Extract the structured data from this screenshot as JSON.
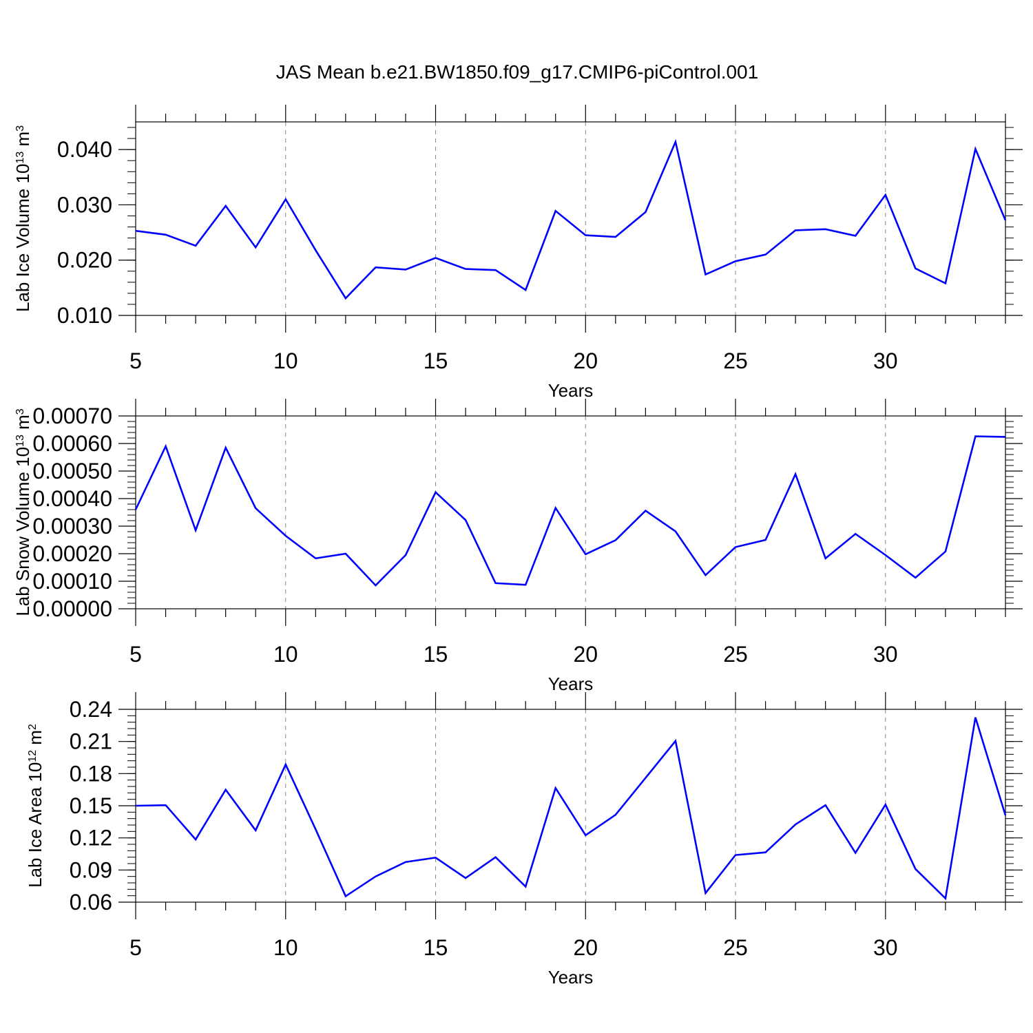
{
  "title": "JAS Mean b.e21.BW1850.f09_g17.CMIP6-piControl.001",
  "chart_data": [
    {
      "type": "line",
      "xlabel": "Years",
      "ylabel": "Lab Ice Volume 10",
      "ylabel_sup": "13",
      "ylabel_unit": " m",
      "ylabel_unit_sup": "3",
      "xlim": [
        5,
        34
      ],
      "ylim": [
        0.01,
        0.045
      ],
      "x_ticks": [
        5,
        10,
        15,
        20,
        25,
        30
      ],
      "x_tick_labels": [
        "5",
        "10",
        "15",
        "20",
        "25",
        "30"
      ],
      "y_ticks": [
        0.01,
        0.02,
        0.03,
        0.04
      ],
      "y_tick_labels": [
        "0.010",
        "0.020",
        "0.030",
        "0.040"
      ],
      "y_minor_step": 0.002,
      "grid_x": "dashed-major",
      "line_color": "#0000ff",
      "x": [
        5,
        6,
        7,
        8,
        9,
        10,
        11,
        12,
        13,
        14,
        15,
        16,
        17,
        18,
        19,
        20,
        21,
        22,
        23,
        24,
        25,
        26,
        27,
        28,
        29,
        30,
        31,
        32,
        33,
        34
      ],
      "y": [
        0.0253,
        0.0246,
        0.0226,
        0.0298,
        0.0223,
        0.031,
        0.0218,
        0.0131,
        0.0187,
        0.0183,
        0.0204,
        0.0184,
        0.0182,
        0.0146,
        0.0289,
        0.0245,
        0.0242,
        0.0287,
        0.0414,
        0.0174,
        0.0198,
        0.021,
        0.0254,
        0.0256,
        0.0244,
        0.0318,
        0.0185,
        0.0158,
        0.0401,
        0.0272
      ]
    },
    {
      "type": "line",
      "xlabel": "Years",
      "ylabel": "Lab Snow Volume 10",
      "ylabel_sup": "13",
      "ylabel_unit": " m",
      "ylabel_unit_sup": "3",
      "xlim": [
        5,
        34
      ],
      "ylim": [
        0.0,
        0.0007
      ],
      "x_ticks": [
        5,
        10,
        15,
        20,
        25,
        30
      ],
      "x_tick_labels": [
        "5",
        "10",
        "15",
        "20",
        "25",
        "30"
      ],
      "y_ticks": [
        0.0,
        0.0001,
        0.0002,
        0.0003,
        0.0004,
        0.0005,
        0.0006,
        0.0007
      ],
      "y_tick_labels": [
        "0.00000",
        "0.00010",
        "0.00020",
        "0.00030",
        "0.00040",
        "0.00050",
        "0.00060",
        "0.00070"
      ],
      "y_minor_step": 2e-05,
      "grid_x": "dashed-major",
      "line_color": "#0000ff",
      "x": [
        5,
        6,
        7,
        8,
        9,
        10,
        11,
        12,
        13,
        14,
        15,
        16,
        17,
        18,
        19,
        20,
        21,
        22,
        23,
        24,
        25,
        26,
        27,
        28,
        29,
        30,
        31,
        32,
        33,
        34
      ],
      "y": [
        0.00036,
        0.00059,
        0.000285,
        0.000585,
        0.000365,
        0.000265,
        0.000183,
        0.0002,
        8.5e-05,
        0.000195,
        0.000423,
        0.000322,
        9.3e-05,
        8.7e-05,
        0.000366,
        0.000198,
        0.000249,
        0.000356,
        0.000281,
        0.000122,
        0.000224,
        0.00025,
        0.000489,
        0.000183,
        0.000272,
        0.000195,
        0.000113,
        0.000208,
        0.000626,
        0.000624
      ]
    },
    {
      "type": "line",
      "xlabel": "Years",
      "ylabel": "Lab Ice Area 10",
      "ylabel_sup": "12",
      "ylabel_unit": " m",
      "ylabel_unit_sup": "2",
      "xlim": [
        5,
        34
      ],
      "ylim": [
        0.06,
        0.24
      ],
      "x_ticks": [
        5,
        10,
        15,
        20,
        25,
        30
      ],
      "x_tick_labels": [
        "5",
        "10",
        "15",
        "20",
        "25",
        "30"
      ],
      "y_ticks": [
        0.06,
        0.09,
        0.12,
        0.15,
        0.18,
        0.21,
        0.24
      ],
      "y_tick_labels": [
        "0.06",
        "0.09",
        "0.12",
        "0.15",
        "0.18",
        "0.21",
        "0.24"
      ],
      "y_minor_step": 0.006,
      "grid_x": "dashed-major",
      "line_color": "#0000ff",
      "x": [
        5,
        6,
        7,
        8,
        9,
        10,
        11,
        12,
        13,
        14,
        15,
        16,
        17,
        18,
        19,
        20,
        21,
        22,
        23,
        24,
        25,
        26,
        27,
        28,
        29,
        30,
        31,
        32,
        33,
        34
      ],
      "y": [
        0.15,
        0.1505,
        0.1185,
        0.165,
        0.127,
        0.1885,
        0.128,
        0.0655,
        0.084,
        0.0975,
        0.1015,
        0.0825,
        0.102,
        0.0745,
        0.1665,
        0.1225,
        0.1415,
        0.176,
        0.2105,
        0.0685,
        0.104,
        0.1065,
        0.1325,
        0.1505,
        0.106,
        0.151,
        0.091,
        0.0635,
        0.2325,
        0.141
      ]
    }
  ]
}
